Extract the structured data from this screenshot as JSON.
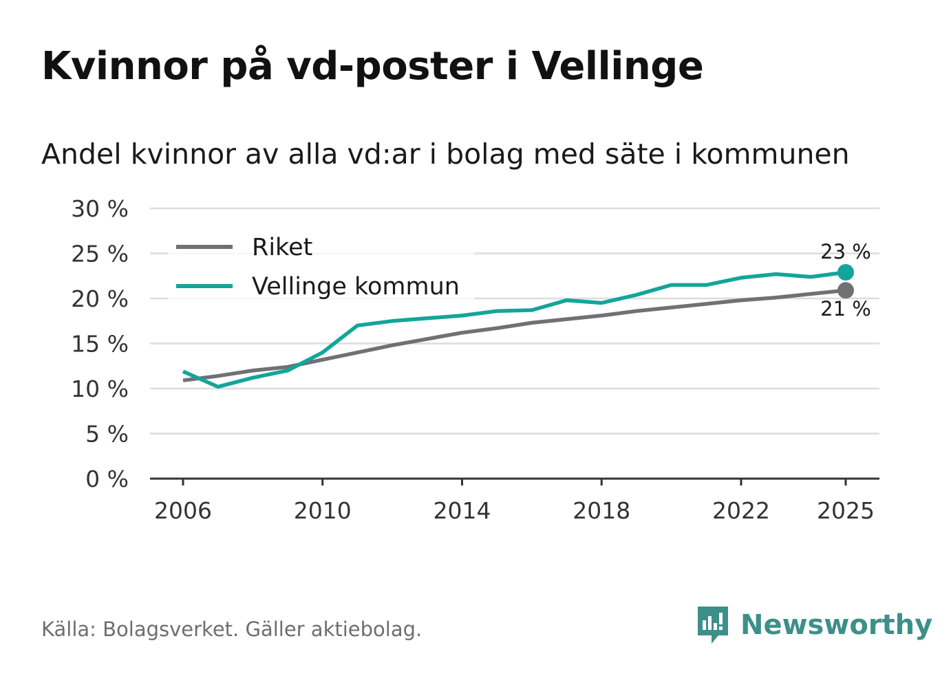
{
  "header": {
    "title": "Kvinnor på vd-poster i Vellinge",
    "subtitle": "Andel kvinnor av alla vd:ar i bolag med säte i kommunen"
  },
  "footer": {
    "source": "Källa: Bolagsverket. Gäller aktiebolag.",
    "brand": "Newsworthy",
    "brand_icon": "newsworthy-logo-icon"
  },
  "colors": {
    "riket": "#717075",
    "vellinge": "#14a599",
    "grid": "#dcdcdc",
    "axis": "#333333",
    "brand": "#3d8f8a"
  },
  "chart_data": {
    "type": "line",
    "title": "Kvinnor på vd-poster i Vellinge",
    "subtitle": "Andel kvinnor av alla vd:ar i bolag med säte i kommunen",
    "xlabel": "",
    "ylabel": "",
    "ylim": [
      0,
      30
    ],
    "yticks": [
      0,
      5,
      10,
      15,
      20,
      25,
      30
    ],
    "ytick_labels": [
      "0 %",
      "5 %",
      "10 %",
      "15 %",
      "20 %",
      "25 %",
      "30 %"
    ],
    "xlim": [
      2006,
      2025
    ],
    "xticks": [
      2006,
      2010,
      2014,
      2018,
      2022,
      2025
    ],
    "xtick_labels": [
      "2006",
      "2010",
      "2014",
      "2018",
      "2022",
      "2025"
    ],
    "grid": true,
    "legend_position": "top-left",
    "x": [
      2006,
      2007,
      2008,
      2009,
      2010,
      2011,
      2012,
      2013,
      2014,
      2015,
      2016,
      2017,
      2018,
      2019,
      2020,
      2021,
      2022,
      2023,
      2024,
      2025
    ],
    "series": [
      {
        "name": "Riket",
        "values": [
          10.9,
          11.4,
          12.0,
          12.4,
          13.2,
          14.0,
          14.8,
          15.5,
          16.2,
          16.7,
          17.3,
          17.7,
          18.1,
          18.6,
          19.0,
          19.4,
          19.8,
          20.1,
          20.5,
          20.9
        ],
        "end_label": "21 %"
      },
      {
        "name": "Vellinge kommun",
        "values": [
          11.9,
          10.2,
          11.2,
          12.0,
          14.0,
          17.0,
          17.5,
          17.8,
          18.1,
          18.6,
          18.7,
          19.8,
          19.5,
          20.4,
          21.5,
          21.5,
          22.3,
          22.7,
          22.4,
          22.9
        ],
        "end_label": "23 %"
      }
    ]
  }
}
